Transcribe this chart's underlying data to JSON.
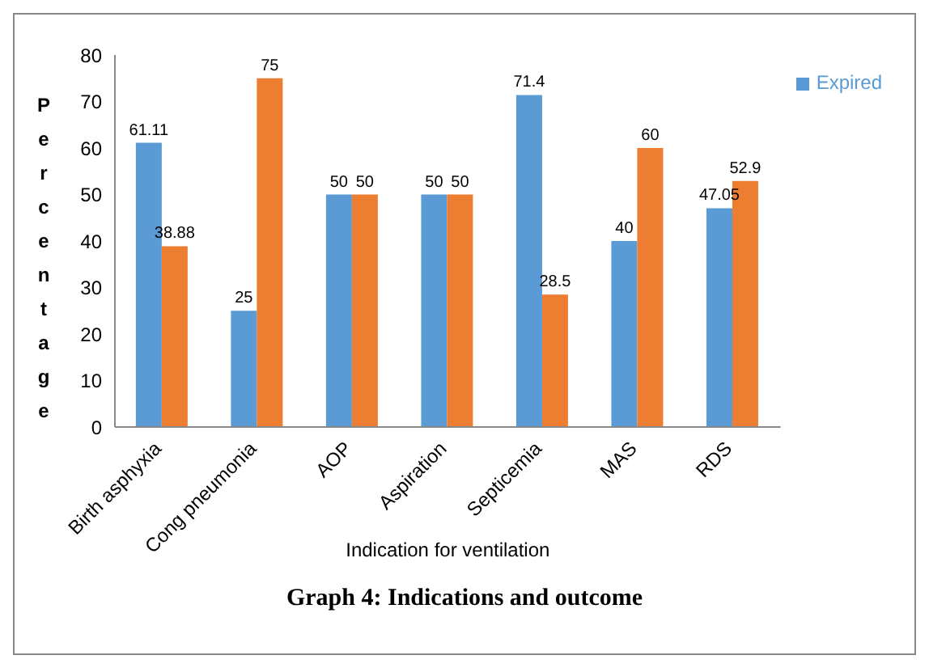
{
  "chart_data": {
    "type": "bar",
    "title": "Graph 4: Indications and outcome",
    "xlabel": "Indication for ventilation",
    "ylabel": "Percentage",
    "categories": [
      "Birth asphyxia",
      "Cong pneumonia",
      "AOP",
      "Aspiration",
      "Septicemia",
      "MAS",
      "RDS"
    ],
    "series": [
      {
        "name": "Expired",
        "color": "#5b9bd5",
        "values": [
          61.11,
          25,
          50,
          50,
          71.4,
          40,
          47.05
        ]
      },
      {
        "color": "#ed7d31",
        "values": [
          38.88,
          75,
          50,
          50,
          28.5,
          60,
          52.9
        ]
      }
    ],
    "ylim": [
      0,
      80
    ],
    "yticks": [
      0,
      10,
      20,
      30,
      40,
      50,
      60,
      70,
      80
    ],
    "grid": false,
    "legend": "top right",
    "data_labels": true
  }
}
